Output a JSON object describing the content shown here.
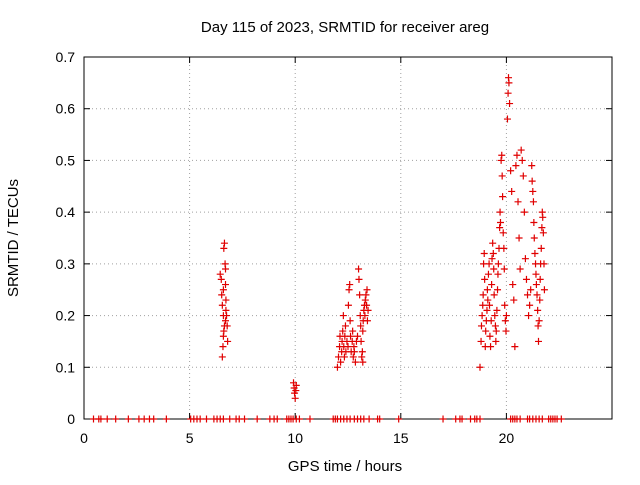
{
  "chart_data": {
    "type": "scatter",
    "title": "Day 115 of 2023, SRMTID for receiver areg",
    "xlabel": "GPS time / hours",
    "ylabel": "SRMTID / TECUs",
    "xlim": [
      0,
      25
    ],
    "ylim": [
      0,
      0.7
    ],
    "x_ticks": [
      0,
      5,
      10,
      15,
      20
    ],
    "y_ticks": [
      0,
      0.1,
      0.2,
      0.3,
      0.4,
      0.5,
      0.6,
      0.7
    ],
    "x_tick_labels": [
      "0",
      "5",
      "10",
      "15",
      "20"
    ],
    "y_tick_labels": [
      "0",
      "0.1",
      "0.2",
      "0.3",
      "0.4",
      "0.5",
      "0.6",
      "0.7"
    ],
    "grid": true,
    "marker": "+",
    "marker_color": "#e00000",
    "series": [
      {
        "name": "areg",
        "points": [
          [
            0.45,
            0
          ],
          [
            0.7,
            0
          ],
          [
            0.8,
            0
          ],
          [
            1.1,
            0
          ],
          [
            1.5,
            0
          ],
          [
            2.1,
            0
          ],
          [
            2.6,
            0
          ],
          [
            2.85,
            0
          ],
          [
            3.1,
            0
          ],
          [
            3.3,
            0
          ],
          [
            3.9,
            0
          ],
          [
            5.05,
            0
          ],
          [
            5.2,
            0
          ],
          [
            5.35,
            0
          ],
          [
            5.5,
            0
          ],
          [
            5.8,
            0
          ],
          [
            6.15,
            0
          ],
          [
            6.3,
            0
          ],
          [
            6.45,
            0
          ],
          [
            6.6,
            0
          ],
          [
            6.9,
            0
          ],
          [
            7.2,
            0
          ],
          [
            7.35,
            0
          ],
          [
            7.6,
            0
          ],
          [
            8.2,
            0
          ],
          [
            8.8,
            0
          ],
          [
            9.0,
            0
          ],
          [
            9.15,
            0
          ],
          [
            9.6,
            0
          ],
          [
            9.7,
            0
          ],
          [
            9.8,
            0
          ],
          [
            9.9,
            0
          ],
          [
            10.05,
            0
          ],
          [
            10.2,
            0
          ],
          [
            10.7,
            0
          ],
          [
            11.8,
            0
          ],
          [
            11.9,
            0
          ],
          [
            12.0,
            0
          ],
          [
            12.15,
            0
          ],
          [
            12.3,
            0
          ],
          [
            12.45,
            0
          ],
          [
            12.6,
            0
          ],
          [
            12.8,
            0
          ],
          [
            12.95,
            0
          ],
          [
            13.1,
            0
          ],
          [
            13.25,
            0
          ],
          [
            13.5,
            0
          ],
          [
            13.9,
            0
          ],
          [
            14.0,
            0
          ],
          [
            14.9,
            0
          ],
          [
            17.0,
            0
          ],
          [
            17.6,
            0
          ],
          [
            17.8,
            0
          ],
          [
            17.9,
            0
          ],
          [
            18.3,
            0
          ],
          [
            18.5,
            0
          ],
          [
            18.6,
            0
          ],
          [
            18.75,
            0
          ],
          [
            20.2,
            0
          ],
          [
            20.3,
            0
          ],
          [
            20.4,
            0
          ],
          [
            20.5,
            0
          ],
          [
            20.65,
            0
          ],
          [
            21.0,
            0
          ],
          [
            21.1,
            0
          ],
          [
            21.25,
            0
          ],
          [
            21.4,
            0
          ],
          [
            21.55,
            0
          ],
          [
            21.7,
            0
          ],
          [
            22.0,
            0
          ],
          [
            22.1,
            0
          ],
          [
            22.2,
            0
          ],
          [
            22.3,
            0
          ],
          [
            22.4,
            0
          ],
          [
            22.6,
            0
          ],
          [
            6.45,
            0.28
          ],
          [
            6.5,
            0.27
          ],
          [
            6.52,
            0.24
          ],
          [
            6.55,
            0.22
          ],
          [
            6.6,
            0.2
          ],
          [
            6.62,
            0.33
          ],
          [
            6.65,
            0.34
          ],
          [
            6.68,
            0.3
          ],
          [
            6.7,
            0.26
          ],
          [
            6.72,
            0.23
          ],
          [
            6.55,
            0.12
          ],
          [
            6.58,
            0.14
          ],
          [
            6.6,
            0.16
          ],
          [
            6.62,
            0.17
          ],
          [
            6.65,
            0.18
          ],
          [
            6.7,
            0.19
          ],
          [
            6.72,
            0.21
          ],
          [
            6.75,
            0.2
          ],
          [
            6.78,
            0.18
          ],
          [
            6.8,
            0.15
          ],
          [
            6.6,
            0.25
          ],
          [
            6.7,
            0.29
          ],
          [
            9.92,
            0.07
          ],
          [
            9.95,
            0.06
          ],
          [
            9.97,
            0.05
          ],
          [
            10.0,
            0.04
          ],
          [
            10.03,
            0.055
          ],
          [
            10.05,
            0.065
          ],
          [
            12.0,
            0.1
          ],
          [
            12.05,
            0.12
          ],
          [
            12.1,
            0.14
          ],
          [
            12.12,
            0.16
          ],
          [
            12.15,
            0.11
          ],
          [
            12.2,
            0.13
          ],
          [
            12.22,
            0.15
          ],
          [
            12.25,
            0.17
          ],
          [
            12.28,
            0.2
          ],
          [
            12.3,
            0.14
          ],
          [
            12.33,
            0.12
          ],
          [
            12.35,
            0.16
          ],
          [
            12.38,
            0.18
          ],
          [
            12.4,
            0.13
          ],
          [
            12.45,
            0.15
          ],
          [
            12.5,
            0.14
          ],
          [
            12.52,
            0.22
          ],
          [
            12.55,
            0.25
          ],
          [
            12.58,
            0.26
          ],
          [
            12.6,
            0.19
          ],
          [
            12.62,
            0.16
          ],
          [
            12.65,
            0.13
          ],
          [
            12.7,
            0.15
          ],
          [
            12.72,
            0.17
          ],
          [
            12.75,
            0.12
          ],
          [
            12.78,
            0.14
          ],
          [
            12.8,
            0.13
          ],
          [
            12.85,
            0.11
          ],
          [
            12.9,
            0.15
          ],
          [
            12.95,
            0.16
          ],
          [
            13.0,
            0.29
          ],
          [
            13.02,
            0.27
          ],
          [
            13.05,
            0.24
          ],
          [
            13.08,
            0.2
          ],
          [
            13.1,
            0.18
          ],
          [
            13.12,
            0.15
          ],
          [
            13.15,
            0.12
          ],
          [
            13.18,
            0.13
          ],
          [
            13.2,
            0.17
          ],
          [
            13.22,
            0.19
          ],
          [
            13.25,
            0.21
          ],
          [
            13.28,
            0.22
          ],
          [
            13.3,
            0.2
          ],
          [
            13.32,
            0.23
          ],
          [
            13.35,
            0.24
          ],
          [
            13.38,
            0.22
          ],
          [
            13.4,
            0.25
          ],
          [
            13.42,
            0.19
          ],
          [
            13.45,
            0.21
          ],
          [
            13.2,
            0.11
          ],
          [
            18.75,
            0.1
          ],
          [
            18.8,
            0.15
          ],
          [
            18.82,
            0.18
          ],
          [
            18.85,
            0.2
          ],
          [
            18.88,
            0.22
          ],
          [
            18.9,
            0.24
          ],
          [
            18.92,
            0.3
          ],
          [
            18.95,
            0.32
          ],
          [
            18.97,
            0.27
          ],
          [
            19.0,
            0.14
          ],
          [
            19.02,
            0.17
          ],
          [
            19.05,
            0.19
          ],
          [
            19.08,
            0.21
          ],
          [
            19.1,
            0.25
          ],
          [
            19.12,
            0.23
          ],
          [
            19.15,
            0.28
          ],
          [
            19.18,
            0.3
          ],
          [
            19.2,
            0.22
          ],
          [
            19.22,
            0.16
          ],
          [
            19.25,
            0.14
          ],
          [
            19.28,
            0.19
          ],
          [
            19.3,
            0.26
          ],
          [
            19.32,
            0.31
          ],
          [
            19.35,
            0.34
          ],
          [
            19.38,
            0.32
          ],
          [
            19.4,
            0.29
          ],
          [
            19.42,
            0.24
          ],
          [
            19.45,
            0.2
          ],
          [
            19.48,
            0.18
          ],
          [
            19.5,
            0.15
          ],
          [
            19.52,
            0.17
          ],
          [
            19.55,
            0.21
          ],
          [
            19.58,
            0.25
          ],
          [
            19.6,
            0.28
          ],
          [
            19.62,
            0.3
          ],
          [
            19.65,
            0.33
          ],
          [
            19.68,
            0.37
          ],
          [
            19.7,
            0.4
          ],
          [
            19.72,
            0.38
          ],
          [
            19.75,
            0.5
          ],
          [
            19.78,
            0.51
          ],
          [
            19.8,
            0.47
          ],
          [
            19.82,
            0.43
          ],
          [
            19.85,
            0.36
          ],
          [
            19.88,
            0.33
          ],
          [
            19.9,
            0.29
          ],
          [
            19.92,
            0.22
          ],
          [
            19.95,
            0.19
          ],
          [
            19.98,
            0.17
          ],
          [
            20.0,
            0.2
          ],
          [
            20.05,
            0.58
          ],
          [
            20.08,
            0.63
          ],
          [
            20.1,
            0.66
          ],
          [
            20.12,
            0.65
          ],
          [
            20.15,
            0.61
          ],
          [
            20.2,
            0.48
          ],
          [
            20.25,
            0.44
          ],
          [
            20.3,
            0.26
          ],
          [
            20.35,
            0.23
          ],
          [
            20.4,
            0.14
          ],
          [
            20.45,
            0.49
          ],
          [
            20.5,
            0.51
          ],
          [
            20.55,
            0.42
          ],
          [
            20.6,
            0.35
          ],
          [
            20.65,
            0.29
          ],
          [
            20.7,
            0.52
          ],
          [
            20.75,
            0.5
          ],
          [
            20.8,
            0.47
          ],
          [
            20.85,
            0.4
          ],
          [
            20.9,
            0.31
          ],
          [
            20.95,
            0.27
          ],
          [
            21.0,
            0.24
          ],
          [
            21.05,
            0.2
          ],
          [
            21.1,
            0.22
          ],
          [
            21.15,
            0.25
          ],
          [
            21.2,
            0.49
          ],
          [
            21.22,
            0.46
          ],
          [
            21.25,
            0.44
          ],
          [
            21.28,
            0.42
          ],
          [
            21.3,
            0.38
          ],
          [
            21.32,
            0.35
          ],
          [
            21.35,
            0.32
          ],
          [
            21.38,
            0.3
          ],
          [
            21.4,
            0.28
          ],
          [
            21.42,
            0.26
          ],
          [
            21.45,
            0.24
          ],
          [
            21.48,
            0.21
          ],
          [
            21.5,
            0.18
          ],
          [
            21.52,
            0.15
          ],
          [
            21.55,
            0.19
          ],
          [
            21.58,
            0.23
          ],
          [
            21.6,
            0.27
          ],
          [
            21.62,
            0.3
          ],
          [
            21.65,
            0.33
          ],
          [
            21.68,
            0.37
          ],
          [
            21.7,
            0.4
          ],
          [
            21.72,
            0.39
          ],
          [
            21.75,
            0.36
          ],
          [
            21.78,
            0.3
          ],
          [
            21.8,
            0.25
          ]
        ]
      }
    ]
  }
}
